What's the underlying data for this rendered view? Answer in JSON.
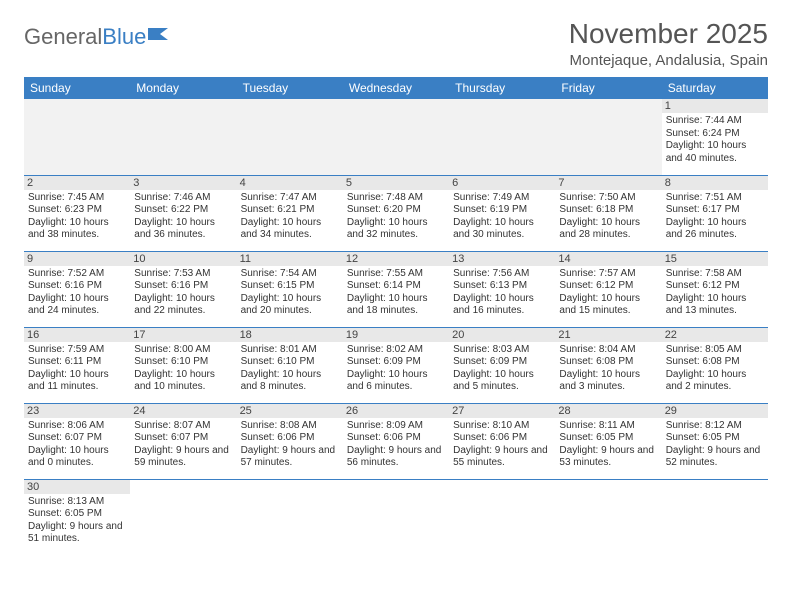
{
  "brand": {
    "part1": "General",
    "part2": "Blue"
  },
  "title": "November 2025",
  "location": "Montejaque, Andalusia, Spain",
  "colors": {
    "header_bg": "#3a7fc4",
    "row_border": "#3a7fc4",
    "daynum_bg": "#e8e8e8"
  },
  "weekdays": [
    "Sunday",
    "Monday",
    "Tuesday",
    "Wednesday",
    "Thursday",
    "Friday",
    "Saturday"
  ],
  "weeks": [
    [
      null,
      null,
      null,
      null,
      null,
      null,
      {
        "n": "1",
        "sr": "7:44 AM",
        "ss": "6:24 PM",
        "dl": "10 hours and 40 minutes."
      }
    ],
    [
      {
        "n": "2",
        "sr": "7:45 AM",
        "ss": "6:23 PM",
        "dl": "10 hours and 38 minutes."
      },
      {
        "n": "3",
        "sr": "7:46 AM",
        "ss": "6:22 PM",
        "dl": "10 hours and 36 minutes."
      },
      {
        "n": "4",
        "sr": "7:47 AM",
        "ss": "6:21 PM",
        "dl": "10 hours and 34 minutes."
      },
      {
        "n": "5",
        "sr": "7:48 AM",
        "ss": "6:20 PM",
        "dl": "10 hours and 32 minutes."
      },
      {
        "n": "6",
        "sr": "7:49 AM",
        "ss": "6:19 PM",
        "dl": "10 hours and 30 minutes."
      },
      {
        "n": "7",
        "sr": "7:50 AM",
        "ss": "6:18 PM",
        "dl": "10 hours and 28 minutes."
      },
      {
        "n": "8",
        "sr": "7:51 AM",
        "ss": "6:17 PM",
        "dl": "10 hours and 26 minutes."
      }
    ],
    [
      {
        "n": "9",
        "sr": "7:52 AM",
        "ss": "6:16 PM",
        "dl": "10 hours and 24 minutes."
      },
      {
        "n": "10",
        "sr": "7:53 AM",
        "ss": "6:16 PM",
        "dl": "10 hours and 22 minutes."
      },
      {
        "n": "11",
        "sr": "7:54 AM",
        "ss": "6:15 PM",
        "dl": "10 hours and 20 minutes."
      },
      {
        "n": "12",
        "sr": "7:55 AM",
        "ss": "6:14 PM",
        "dl": "10 hours and 18 minutes."
      },
      {
        "n": "13",
        "sr": "7:56 AM",
        "ss": "6:13 PM",
        "dl": "10 hours and 16 minutes."
      },
      {
        "n": "14",
        "sr": "7:57 AM",
        "ss": "6:12 PM",
        "dl": "10 hours and 15 minutes."
      },
      {
        "n": "15",
        "sr": "7:58 AM",
        "ss": "6:12 PM",
        "dl": "10 hours and 13 minutes."
      }
    ],
    [
      {
        "n": "16",
        "sr": "7:59 AM",
        "ss": "6:11 PM",
        "dl": "10 hours and 11 minutes."
      },
      {
        "n": "17",
        "sr": "8:00 AM",
        "ss": "6:10 PM",
        "dl": "10 hours and 10 minutes."
      },
      {
        "n": "18",
        "sr": "8:01 AM",
        "ss": "6:10 PM",
        "dl": "10 hours and 8 minutes."
      },
      {
        "n": "19",
        "sr": "8:02 AM",
        "ss": "6:09 PM",
        "dl": "10 hours and 6 minutes."
      },
      {
        "n": "20",
        "sr": "8:03 AM",
        "ss": "6:09 PM",
        "dl": "10 hours and 5 minutes."
      },
      {
        "n": "21",
        "sr": "8:04 AM",
        "ss": "6:08 PM",
        "dl": "10 hours and 3 minutes."
      },
      {
        "n": "22",
        "sr": "8:05 AM",
        "ss": "6:08 PM",
        "dl": "10 hours and 2 minutes."
      }
    ],
    [
      {
        "n": "23",
        "sr": "8:06 AM",
        "ss": "6:07 PM",
        "dl": "10 hours and 0 minutes."
      },
      {
        "n": "24",
        "sr": "8:07 AM",
        "ss": "6:07 PM",
        "dl": "9 hours and 59 minutes."
      },
      {
        "n": "25",
        "sr": "8:08 AM",
        "ss": "6:06 PM",
        "dl": "9 hours and 57 minutes."
      },
      {
        "n": "26",
        "sr": "8:09 AM",
        "ss": "6:06 PM",
        "dl": "9 hours and 56 minutes."
      },
      {
        "n": "27",
        "sr": "8:10 AM",
        "ss": "6:06 PM",
        "dl": "9 hours and 55 minutes."
      },
      {
        "n": "28",
        "sr": "8:11 AM",
        "ss": "6:05 PM",
        "dl": "9 hours and 53 minutes."
      },
      {
        "n": "29",
        "sr": "8:12 AM",
        "ss": "6:05 PM",
        "dl": "9 hours and 52 minutes."
      }
    ],
    [
      {
        "n": "30",
        "sr": "8:13 AM",
        "ss": "6:05 PM",
        "dl": "9 hours and 51 minutes."
      },
      null,
      null,
      null,
      null,
      null,
      null
    ]
  ],
  "labels": {
    "sunrise": "Sunrise:",
    "sunset": "Sunset:",
    "daylight": "Daylight:"
  }
}
